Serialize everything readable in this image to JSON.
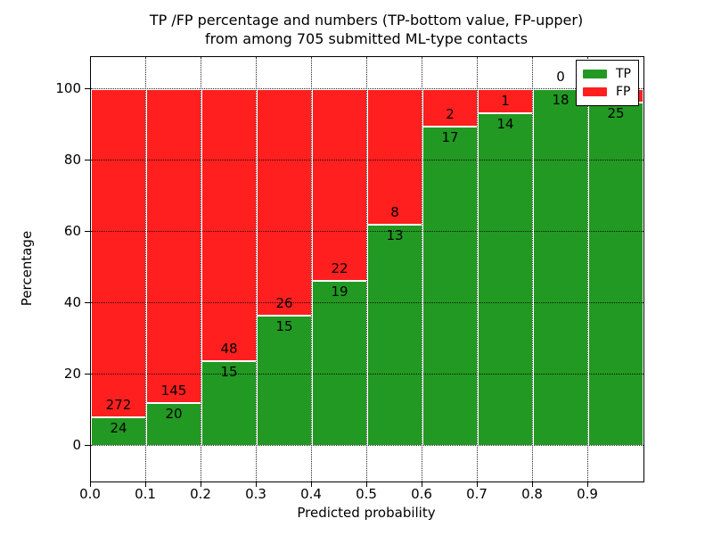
{
  "title": {
    "line1": "TP /FP percentage and numbers (TP-bottom value, FP-upper)",
    "line2": "from among 705 submitted ML-type contacts"
  },
  "axes": {
    "xlabel": "Predicted probability",
    "ylabel": "Percentage",
    "x_tick_labels": [
      "0.0",
      "0.1",
      "0.2",
      "0.3",
      "0.4",
      "0.5",
      "0.6",
      "0.7",
      "0.8",
      "0.9"
    ],
    "y_tick_labels": [
      "0",
      "20",
      "40",
      "60",
      "80",
      "100"
    ]
  },
  "legend": {
    "items": [
      {
        "label": "TP",
        "color": "#229922"
      },
      {
        "label": "FP",
        "color": "#ff1f1f"
      }
    ]
  },
  "colors": {
    "tp": "#229922",
    "fp": "#ff1f1f",
    "grid": "#000000",
    "background": "#ffffff"
  },
  "chart_data": {
    "type": "bar",
    "stacked": true,
    "normalized_to_percent": true,
    "title": "TP /FP percentage and numbers (TP-bottom value, FP-upper) from among 705 submitted ML-type contacts",
    "xlabel": "Predicted probability",
    "ylabel": "Percentage",
    "total_contacts": 705,
    "bin_edges": [
      0.0,
      0.1,
      0.2,
      0.3,
      0.4,
      0.5,
      0.6,
      0.7,
      0.8,
      0.9,
      1.0
    ],
    "categories": [
      "0.0",
      "0.1",
      "0.2",
      "0.3",
      "0.4",
      "0.5",
      "0.6",
      "0.7",
      "0.8",
      "0.9"
    ],
    "series": [
      {
        "name": "TP",
        "color": "#229922",
        "counts": [
          24,
          20,
          15,
          15,
          19,
          13,
          17,
          14,
          18,
          25
        ],
        "value_labels": [
          "24",
          "20",
          "15",
          "15",
          "19",
          "13",
          "17",
          "14",
          "18",
          "25"
        ]
      },
      {
        "name": "FP",
        "color": "#ff1f1f",
        "counts": [
          272,
          145,
          48,
          26,
          22,
          8,
          2,
          1,
          0,
          1
        ],
        "value_labels": [
          "272",
          "145",
          "48",
          "26",
          "22",
          "8",
          "2",
          "1",
          "0",
          ""
        ]
      }
    ],
    "tp_percent": [
      8.1,
      12.1,
      23.8,
      36.6,
      46.3,
      61.9,
      89.5,
      93.3,
      100.0,
      96.2
    ],
    "xlim": [
      0.0,
      1.0
    ],
    "ylim": [
      -10,
      109
    ],
    "yticks": [
      0,
      20,
      40,
      60,
      80,
      100
    ],
    "xticks": [
      0.0,
      0.1,
      0.2,
      0.3,
      0.4,
      0.5,
      0.6,
      0.7,
      0.8,
      0.9
    ],
    "grid": "dotted, drawn above bars",
    "legend_position": "upper right",
    "note": "FP count label of last bin is hidden behind the legend box"
  }
}
